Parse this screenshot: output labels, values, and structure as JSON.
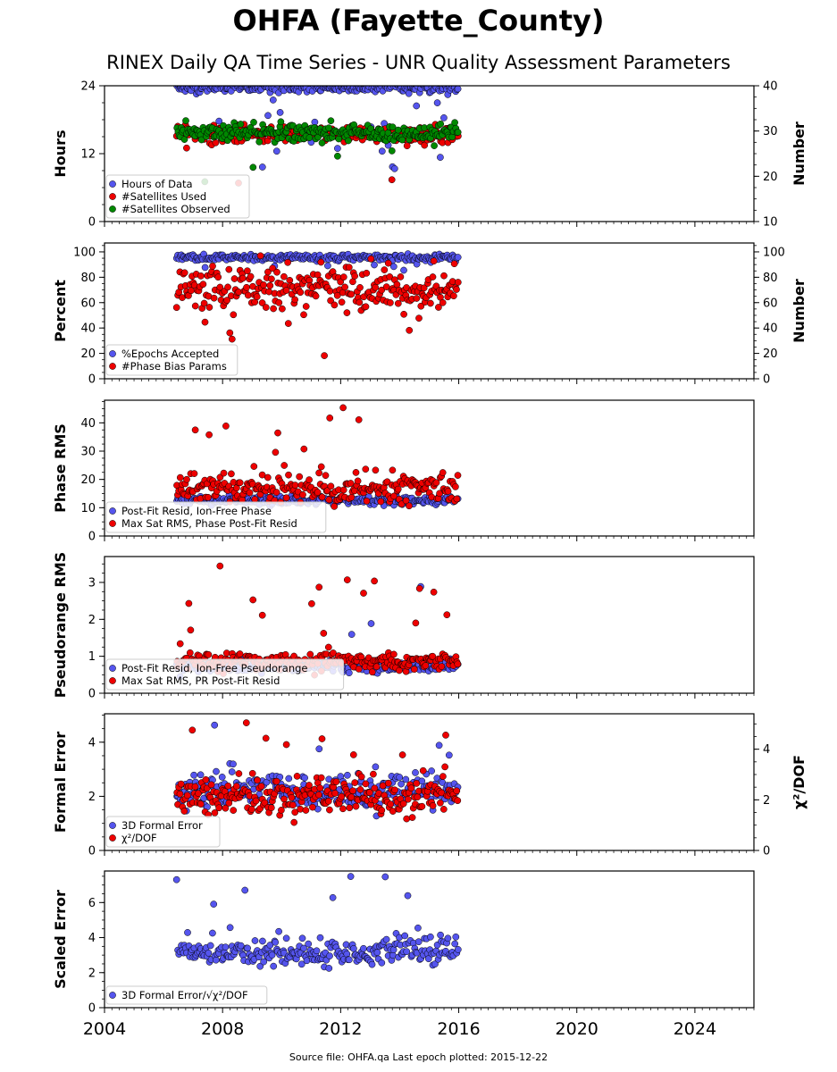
{
  "title": "OHFA (Fayette_County)",
  "subtitle": "RINEX Daily QA Time Series - UNR Quality Assessment Parameters",
  "footer": "Source file: OHFA.qa Last epoch plotted: 2015-12-22",
  "colors": {
    "blue": "#5555ee",
    "red": "#ee0000",
    "green": "#008800"
  },
  "chart_data": [
    {
      "id": "hours",
      "type": "scatter",
      "ylabel": "Hours",
      "y2label": "Number",
      "ylim": [
        0,
        24
      ],
      "yticks": [
        0,
        12,
        24
      ],
      "y2lim": [
        10,
        40
      ],
      "y2ticks": [
        10,
        20,
        30,
        40
      ],
      "xlim": [
        2004,
        2026
      ],
      "xticks": [
        2004,
        2008,
        2012,
        2016,
        2020,
        2024
      ],
      "data_range": [
        2006.45,
        2015.97
      ],
      "legend": "lower-left",
      "series": [
        {
          "name": "Hours of Data",
          "color": "blue",
          "axis": "left",
          "base": 23.6,
          "spread": 0.4,
          "outlier_lo": 8,
          "outlier_hi": 24,
          "outlier_rate": 0.08
        },
        {
          "name": "#Satellites Used",
          "color": "red",
          "axis": "right",
          "base": 29.3,
          "spread": 0.9,
          "outlier_lo": 18,
          "outlier_hi": 32,
          "outlier_rate": 0.03
        },
        {
          "name": "#Satellites Observed",
          "color": "green",
          "axis": "right",
          "base": 29.5,
          "spread": 1.0,
          "outlier_lo": 18,
          "outlier_hi": 31,
          "outlier_rate": 0.03
        }
      ]
    },
    {
      "id": "percent",
      "type": "scatter",
      "ylabel": "Percent",
      "y2label": "Number",
      "ylim": [
        0,
        107
      ],
      "yticks": [
        0,
        20,
        40,
        60,
        80,
        100
      ],
      "y2lim": [
        0,
        107
      ],
      "y2ticks": [
        0,
        20,
        40,
        60,
        80,
        100
      ],
      "xlim": [
        2004,
        2026
      ],
      "xticks": [
        2004,
        2008,
        2012,
        2016,
        2020,
        2024
      ],
      "data_range": [
        2006.45,
        2015.97
      ],
      "legend": "lower-left",
      "series": [
        {
          "name": "%Epochs Accepted",
          "color": "blue",
          "axis": "left",
          "base": 95.5,
          "spread": 1.2,
          "outlier_lo": 85,
          "outlier_hi": 98,
          "outlier_rate": 0.03
        },
        {
          "name": "#Phase Bias Params",
          "color": "red",
          "axis": "right",
          "base": 70,
          "spread": 9,
          "outlier_lo": 18,
          "outlier_hi": 105,
          "outlier_rate": 0.04
        }
      ]
    },
    {
      "id": "phase",
      "type": "scatter",
      "ylabel": "Phase RMS",
      "ylim": [
        0,
        48
      ],
      "yticks": [
        0,
        10,
        20,
        30,
        40
      ],
      "xlim": [
        2004,
        2026
      ],
      "xticks": [
        2004,
        2008,
        2012,
        2016,
        2020,
        2024
      ],
      "data_range": [
        2006.45,
        2015.97
      ],
      "legend": "lower-left",
      "series": [
        {
          "name": "Post-Fit Resid, Ion-Free Phase",
          "color": "blue",
          "axis": "left",
          "base": 12.5,
          "spread": 0.8,
          "outlier_lo": 10,
          "outlier_hi": 15,
          "outlier_rate": 0.02
        },
        {
          "name": "Max Sat RMS, Phase Post-Fit Resid",
          "color": "red",
          "axis": "left",
          "base": 17,
          "spread": 2.5,
          "outlier_lo": 22,
          "outlier_hi": 46,
          "outlier_rate": 0.04
        }
      ]
    },
    {
      "id": "pseudorange",
      "type": "scatter",
      "ylabel": "Pseudorange RMS",
      "ylim": [
        0,
        3.7
      ],
      "yticks": [
        0,
        1,
        2,
        3
      ],
      "xlim": [
        2004,
        2026
      ],
      "xticks": [
        2004,
        2008,
        2012,
        2016,
        2020,
        2024
      ],
      "data_range": [
        2006.45,
        2015.97
      ],
      "legend": "lower-left",
      "series": [
        {
          "name": "Post-Fit Resid, Ion-Free Pseudorange",
          "color": "blue",
          "axis": "left",
          "base": 0.72,
          "spread": 0.08,
          "outlier_lo": 1.0,
          "outlier_hi": 3.1,
          "outlier_rate": 0.02
        },
        {
          "name": "Max Sat RMS, PR Post-Fit Resid",
          "color": "red",
          "axis": "left",
          "base": 0.85,
          "spread": 0.12,
          "outlier_lo": 1.0,
          "outlier_hi": 3.5,
          "outlier_rate": 0.03
        }
      ]
    },
    {
      "id": "formal",
      "type": "scatter",
      "ylabel": "Formal Error",
      "y2label": "χ²/DOF",
      "ylim": [
        0,
        5.05
      ],
      "yticks": [
        0,
        2,
        4
      ],
      "y2lim": [
        0,
        5.4
      ],
      "y2ticks": [
        0,
        2,
        4
      ],
      "xlim": [
        2004,
        2026
      ],
      "xticks": [
        2004,
        2008,
        2012,
        2016,
        2020,
        2024
      ],
      "data_range": [
        2006.45,
        2015.97
      ],
      "legend": "lower-left",
      "series": [
        {
          "name": "3D Formal Error",
          "color": "blue",
          "axis": "left",
          "base": 2.2,
          "spread": 0.3,
          "outlier_lo": 2.8,
          "outlier_hi": 4.8,
          "outlier_rate": 0.03
        },
        {
          "name": "χ²/DOF",
          "color": "red",
          "axis": "right",
          "base": 2.2,
          "spread": 0.35,
          "outlier_lo": 2.8,
          "outlier_hi": 5.2,
          "outlier_rate": 0.03
        }
      ]
    },
    {
      "id": "scaled",
      "type": "scatter",
      "ylabel": "Scaled Error",
      "ylim": [
        0,
        7.8
      ],
      "yticks": [
        0,
        2,
        4,
        6
      ],
      "xlim": [
        2004,
        2026
      ],
      "xticks": [
        2004,
        2008,
        2012,
        2016,
        2020,
        2024
      ],
      "data_range": [
        2006.45,
        2015.97
      ],
      "legend": "lower-left",
      "show_xlabels": true,
      "series": [
        {
          "name": "3D Formal Error/√χ²/DOF",
          "color": "blue",
          "axis": "left",
          "base": 3.2,
          "spread": 0.4,
          "outlier_lo": 4.0,
          "outlier_hi": 7.5,
          "outlier_rate": 0.03
        }
      ]
    }
  ]
}
